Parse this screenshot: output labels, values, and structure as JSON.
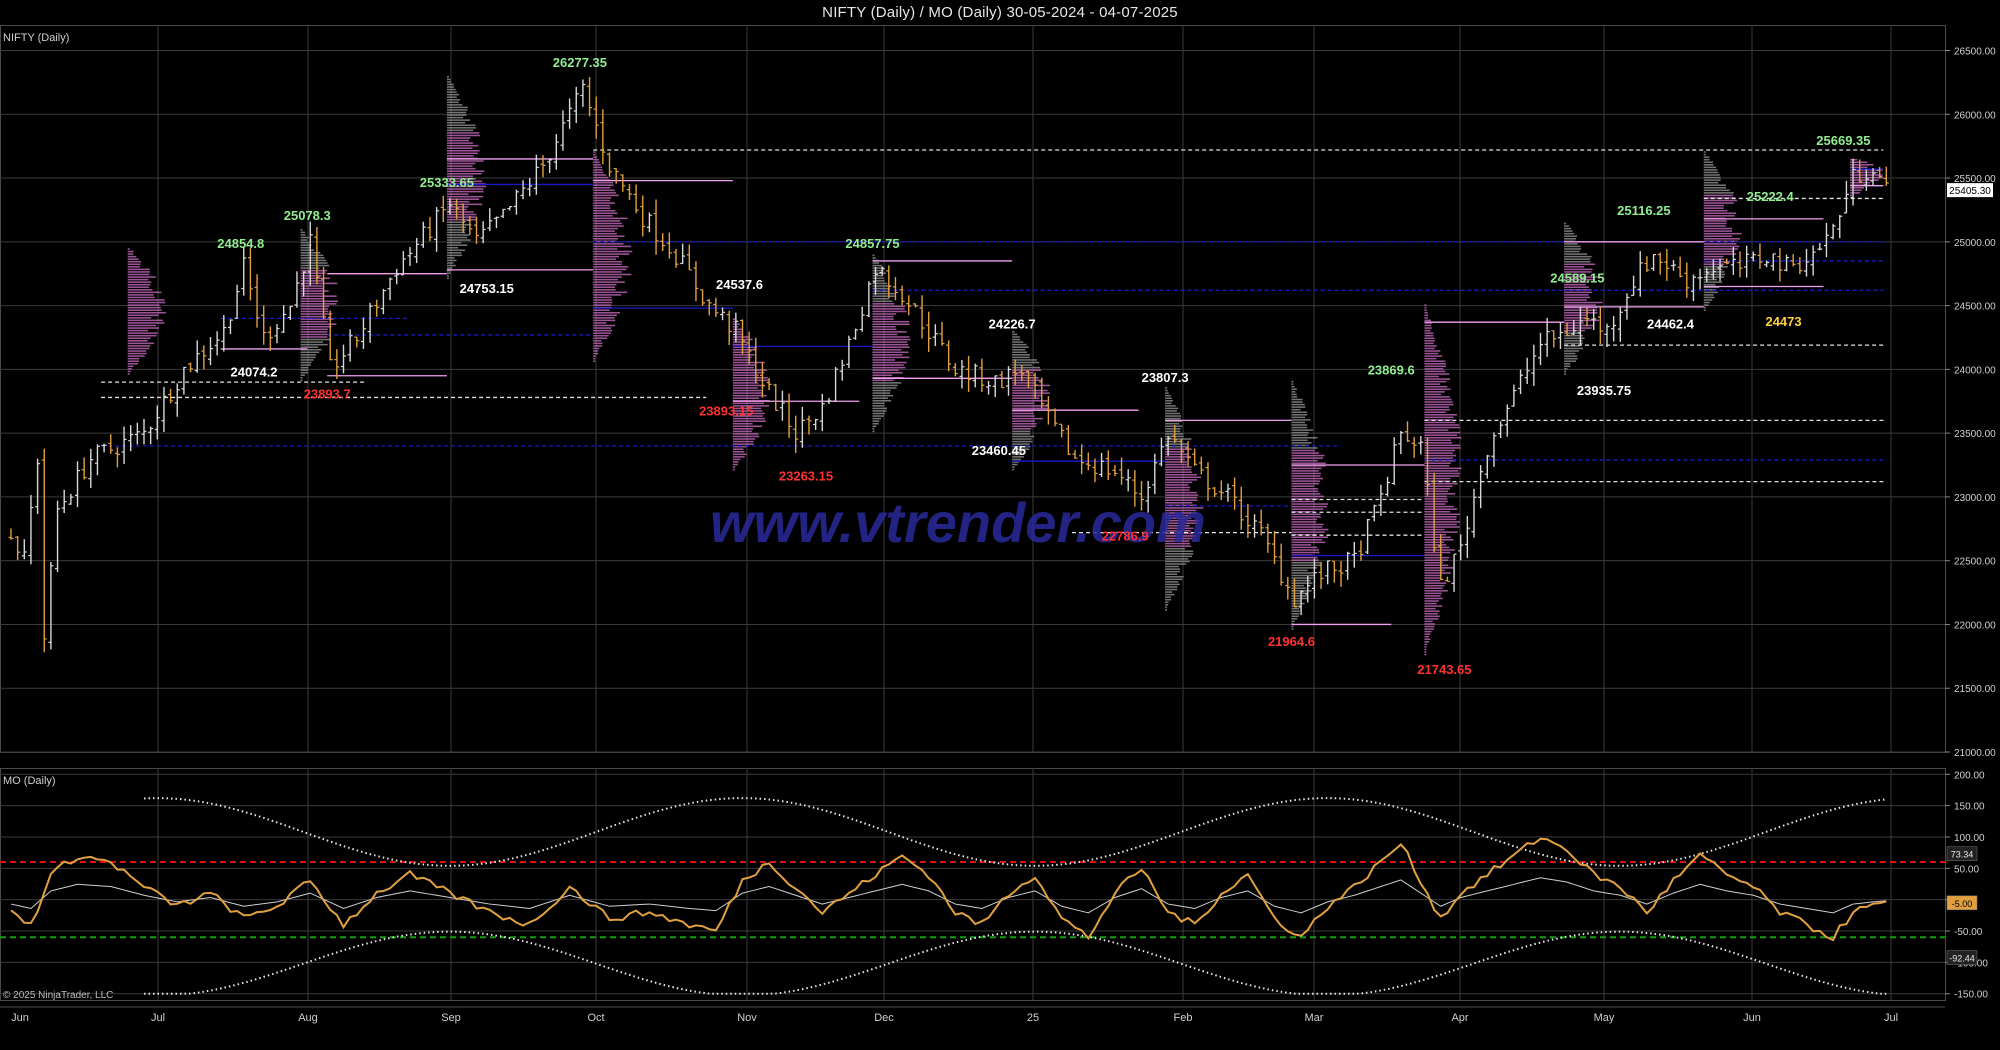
{
  "header": {
    "title": "NIFTY (Daily) / MO (Daily)  30-05-2024 - 04-07-2025"
  },
  "colors": {
    "background": "#000000",
    "grid": "#3a3a3a",
    "bar_up": "#d8d8d8",
    "bar_down": "#e0a040",
    "profile_gray": "#9a9a9a",
    "profile_pink": "#d070c8",
    "poc_line": "#1818c8",
    "va_line": "#e0e0e0",
    "va_pink": "#f0a0f0",
    "label_high": "#90ee90",
    "label_low": "#ff3030",
    "label_white": "#ffffff",
    "label_yellow": "#ffd040",
    "mo_line": "#e0a040",
    "mo_band": "#e8e8e8",
    "mo_red": "#e01010",
    "mo_green": "#10a010",
    "watermark": "#2a2a9a"
  },
  "watermark": "www.vtrender.com",
  "copyright": "© 2025 NinjaTrader, LLC",
  "chart_data": [
    {
      "type": "ohlc",
      "title": "NIFTY (Daily)",
      "ylim": [
        21000,
        26700
      ],
      "y_ticks": [
        21000,
        21500,
        22000,
        22500,
        23000,
        23500,
        24000,
        24500,
        25000,
        25500,
        26000,
        26500
      ],
      "y_tick_labels": [
        "21000.00",
        "21500.00",
        "22000.00",
        "22500.00",
        "23000.00",
        "23500.00",
        "24000.00",
        "24500.00",
        "25000.00",
        "25500.00",
        "26000.00",
        "26500.00"
      ],
      "x_months": [
        "Jun",
        "Jul",
        "Aug",
        "Sep",
        "Oct",
        "Nov",
        "Dec",
        "25",
        "Feb",
        "Mar",
        "Apr",
        "May",
        "Jun",
        "Jul"
      ],
      "last_price": "25405.30",
      "annotations": [
        {
          "text": "26277.35",
          "color": "label_high",
          "day": 86,
          "price": 26370
        },
        {
          "text": "25333.65",
          "color": "label_high",
          "day": 66,
          "price": 25430
        },
        {
          "text": "25078.3",
          "color": "label_high",
          "day": 45,
          "price": 25170
        },
        {
          "text": "24854.8",
          "color": "label_high",
          "day": 35,
          "price": 24950
        },
        {
          "text": "24753.15",
          "color": "label_white",
          "day": 72,
          "price": 24600
        },
        {
          "text": "24074.2",
          "color": "label_white",
          "day": 37,
          "price": 23945
        },
        {
          "text": "23893.7",
          "color": "label_low",
          "day": 48,
          "price": 23770
        },
        {
          "text": "24537.6",
          "color": "label_white",
          "day": 110,
          "price": 24630
        },
        {
          "text": "23893.15",
          "color": "label_low",
          "day": 108,
          "price": 23640
        },
        {
          "text": "23263.15",
          "color": "label_low",
          "day": 120,
          "price": 23130
        },
        {
          "text": "24857.75",
          "color": "label_high",
          "day": 130,
          "price": 24950
        },
        {
          "text": "24226.7",
          "color": "label_white",
          "day": 151,
          "price": 24320
        },
        {
          "text": "23460.45",
          "color": "label_white",
          "day": 149,
          "price": 23330
        },
        {
          "text": "22786.9",
          "color": "label_low",
          "day": 168,
          "price": 22660
        },
        {
          "text": "23807.3",
          "color": "label_white",
          "day": 174,
          "price": 23900
        },
        {
          "text": "23869.6",
          "color": "label_high",
          "day": 208,
          "price": 23960
        },
        {
          "text": "21964.6",
          "color": "label_low",
          "day": 193,
          "price": 21830
        },
        {
          "text": "21743.65",
          "color": "label_low",
          "day": 216,
          "price": 21610
        },
        {
          "text": "24589.15",
          "color": "label_high",
          "day": 236,
          "price": 24680
        },
        {
          "text": "23935.75",
          "color": "label_white",
          "day": 240,
          "price": 23800
        },
        {
          "text": "25116.25",
          "color": "label_high",
          "day": 246,
          "price": 25210
        },
        {
          "text": "24462.4",
          "color": "label_white",
          "day": 250,
          "price": 24320
        },
        {
          "text": "25222.4",
          "color": "label_high",
          "day": 265,
          "price": 25320
        },
        {
          "text": "24473",
          "color": "label_yellow",
          "day": 267,
          "price": 24340
        },
        {
          "text": "25669.35",
          "color": "label_high",
          "day": 276,
          "price": 25760
        }
      ]
    },
    {
      "type": "line",
      "title": "MO (Daily)",
      "ylim": [
        -160,
        210
      ],
      "y_ticks": [
        -150,
        -100,
        -50,
        0,
        50,
        100,
        150,
        200
      ],
      "y_tick_labels": [
        "-150.00",
        "-100.00",
        "-50.00",
        "0.00",
        "50.00",
        "100.00",
        "150.00",
        "200.00"
      ],
      "levels": {
        "upper": 60,
        "lower": -60
      },
      "last_values": {
        "upper_band": "73.34",
        "mo": "-5.00",
        "lower_band": "-92.44"
      }
    }
  ]
}
